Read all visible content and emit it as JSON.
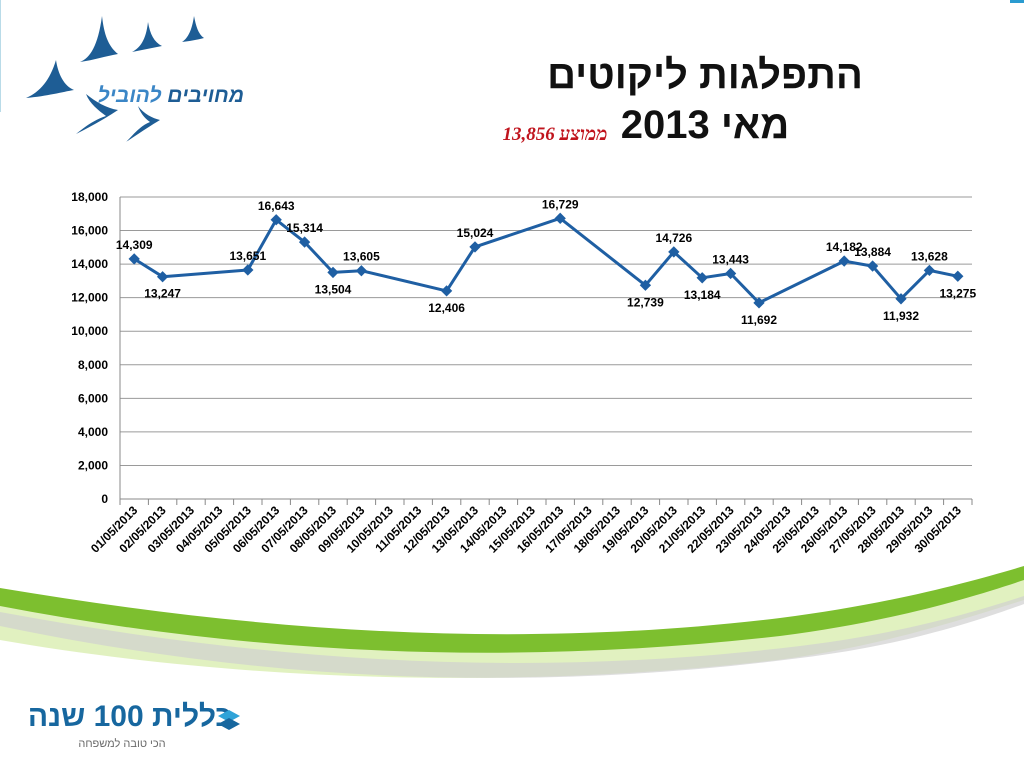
{
  "slide": {
    "title_line1": "התפלגות ליקוטים",
    "title_line2": "מאי 2013",
    "average_label": "ממוצע 13,856"
  },
  "logos": {
    "top_text_part1": "מחויבים ",
    "top_text_part2": "להוביל",
    "bottom_main": "כללית 100 שנה",
    "bottom_sub": "הכי טובה למשפחה"
  },
  "colors": {
    "series": "#1f5fa3",
    "title": "#111111",
    "average": "#c0141d",
    "swoosh_green": "#7dbf2f",
    "swoosh_light": "#c6e27a",
    "logo_blue": "#1e5d95"
  },
  "chart_data": {
    "type": "line",
    "title": "",
    "xlabel": "",
    "ylabel": "",
    "ylim": [
      0,
      18000
    ],
    "yticks": [
      0,
      2000,
      4000,
      6000,
      8000,
      10000,
      12000,
      14000,
      16000,
      18000
    ],
    "ytick_labels": [
      "0",
      "2,000",
      "4,000",
      "6,000",
      "8,000",
      "10,000",
      "12,000",
      "14,000",
      "16,000",
      "18,000"
    ],
    "grid": true,
    "legend": "none",
    "categories": [
      "01/05/2013",
      "02/05/2013",
      "03/05/2013",
      "04/05/2013",
      "05/05/2013",
      "06/05/2013",
      "07/05/2013",
      "08/05/2013",
      "09/05/2013",
      "10/05/2013",
      "11/05/2013",
      "12/05/2013",
      "13/05/2013",
      "14/05/2013",
      "15/05/2013",
      "16/05/2013",
      "17/05/2013",
      "18/05/2013",
      "19/05/2013",
      "20/05/2013",
      "21/05/2013",
      "22/05/2013",
      "23/05/2013",
      "24/05/2013",
      "25/05/2013",
      "26/05/2013",
      "27/05/2013",
      "28/05/2013",
      "29/05/2013",
      "30/05/2013"
    ],
    "points": [
      {
        "x": "01/05/2013",
        "y": 14309,
        "label": "14,309"
      },
      {
        "x": "02/05/2013",
        "y": 13247,
        "label": "13,247"
      },
      {
        "x": "05/05/2013",
        "y": 13651,
        "label": "13,651"
      },
      {
        "x": "06/05/2013",
        "y": 16643,
        "label": "16,643"
      },
      {
        "x": "07/05/2013",
        "y": 15314,
        "label": "15,314"
      },
      {
        "x": "08/05/2013",
        "y": 13504,
        "label": "13,504"
      },
      {
        "x": "09/05/2013",
        "y": 13605,
        "label": "13,605"
      },
      {
        "x": "12/05/2013",
        "y": 12406,
        "label": "12,406"
      },
      {
        "x": "13/05/2013",
        "y": 15024,
        "label": "15,024"
      },
      {
        "x": "16/05/2013",
        "y": 16729,
        "label": "16,729"
      },
      {
        "x": "19/05/2013",
        "y": 12739,
        "label": "12,739"
      },
      {
        "x": "20/05/2013",
        "y": 14726,
        "label": "14,726"
      },
      {
        "x": "21/05/2013",
        "y": 13184,
        "label": "13,184"
      },
      {
        "x": "22/05/2013",
        "y": 13443,
        "label": "13,443"
      },
      {
        "x": "23/05/2013",
        "y": 11692,
        "label": "11,692"
      },
      {
        "x": "26/05/2013",
        "y": 14182,
        "label": "14,182"
      },
      {
        "x": "27/05/2013",
        "y": 13884,
        "label": "13,884"
      },
      {
        "x": "28/05/2013",
        "y": 11932,
        "label": "11,932"
      },
      {
        "x": "29/05/2013",
        "y": 13628,
        "label": "13,628"
      },
      {
        "x": "30/05/2013",
        "y": 13275,
        "label": "13,275"
      }
    ]
  }
}
